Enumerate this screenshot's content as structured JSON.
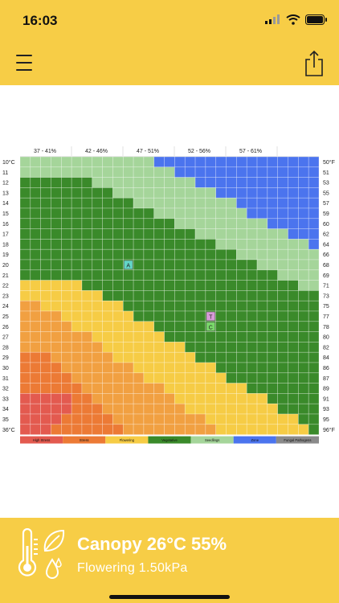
{
  "status_bar": {
    "time": "16:03"
  },
  "header": {
    "menu_icon": "hamburger-menu-icon",
    "share_icon": "share-icon"
  },
  "colors": {
    "brand_yellow": "#f7cd46",
    "high_stress": "#e35a4f",
    "stress": "#ec7a35",
    "stress_light": "#f1a041",
    "flowering": "#f6cc45",
    "vegetative": "#3a8a2a",
    "seedlings": "#a5d59a",
    "zone": "#4b74ee",
    "fungal": "#8a8a8a"
  },
  "chart_data": {
    "type": "heatmap",
    "humidity_bands": [
      "37 - 41%",
      "42 - 46%",
      "47 - 51%",
      "52 - 56%",
      "57 - 61%"
    ],
    "y_left_labels": [
      "10°C",
      "11",
      "12",
      "13",
      "14",
      "15",
      "16",
      "17",
      "18",
      "19",
      "20",
      "21",
      "22",
      "23",
      "24",
      "25",
      "26",
      "27",
      "28",
      "29",
      "30",
      "31",
      "32",
      "33",
      "34",
      "35",
      "36°C"
    ],
    "y_right_labels": [
      "50°F",
      "51",
      "53",
      "55",
      "57",
      "59",
      "60",
      "62",
      "64",
      "66",
      "68",
      "69",
      "71",
      "73",
      "75",
      "77",
      "78",
      "80",
      "82",
      "84",
      "86",
      "87",
      "89",
      "91",
      "93",
      "95",
      "96°F"
    ],
    "columns": 29,
    "legend": [
      "High Stress",
      "Stress",
      "Flowering",
      "Vegetative",
      "Seedlings",
      "Zone",
      "Fungal Pathogens"
    ],
    "markers": [
      {
        "label": "A",
        "temp_c": 20,
        "col": 10,
        "color": "#63d6c8"
      },
      {
        "label": "T",
        "temp_c": 25,
        "col": 18,
        "color": "#d79bd8"
      },
      {
        "label": "C",
        "temp_c": 26,
        "col": 18,
        "color": "#79d96a"
      }
    ]
  },
  "footer": {
    "title": "Canopy 26°C  55%",
    "subtitle": "Flowering 1.50kPa",
    "icons": [
      "thermometer-icon",
      "leaf-icon",
      "droplets-icon"
    ]
  }
}
